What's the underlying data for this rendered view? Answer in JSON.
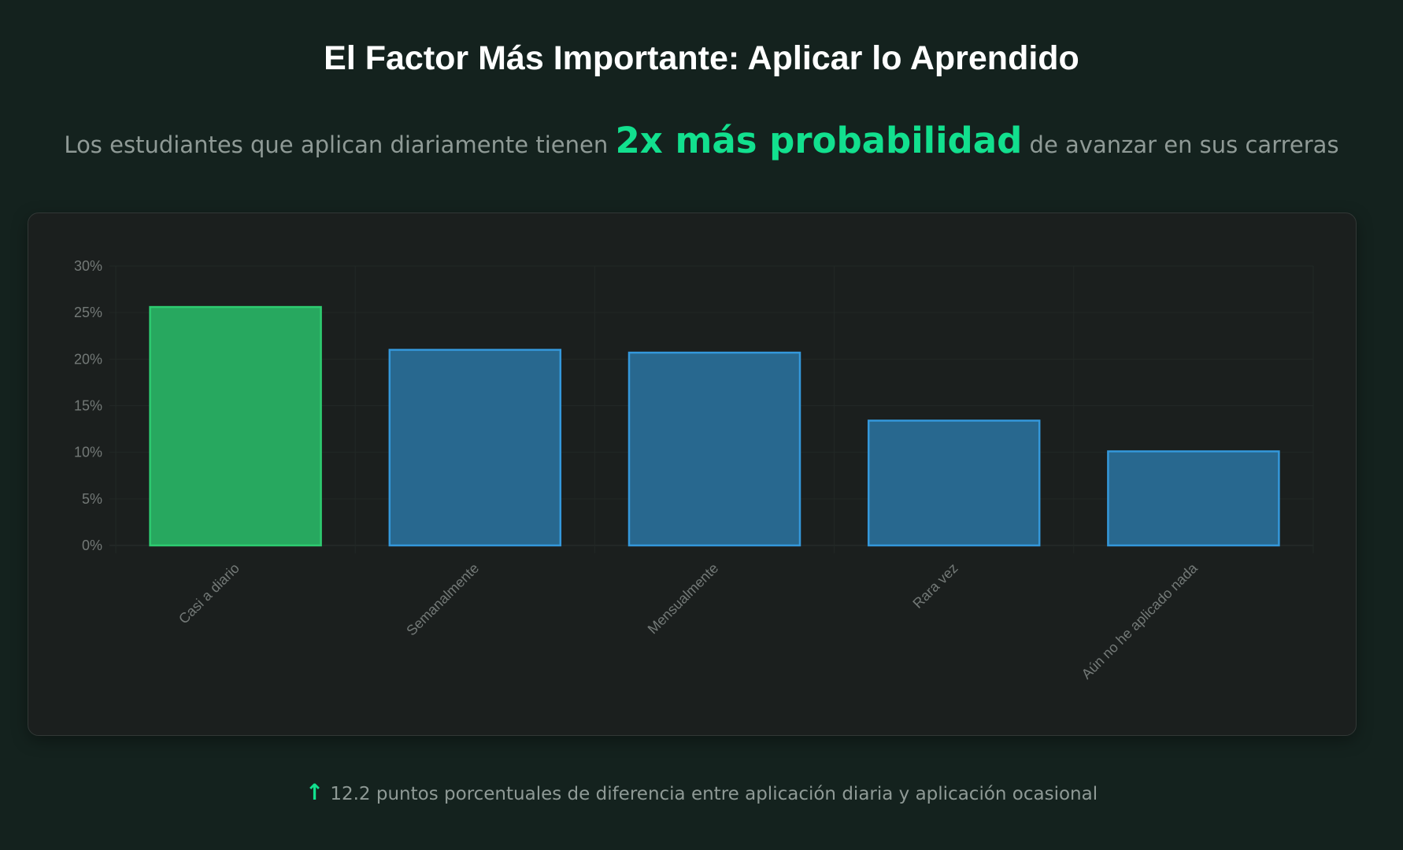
{
  "header": {
    "title": "El Factor Más Importante: Aplicar lo Aprendido",
    "subtitle_before": "Los estudiantes que aplican diariamente tienen",
    "subtitle_highlight": "2x más probabilidad",
    "subtitle_after": "de avanzar en sus carreras"
  },
  "footer": {
    "icon": "arrow-up-icon",
    "text": "12.2 puntos porcentuales de diferencia entre aplicación diaria y aplicación ocasional"
  },
  "colors": {
    "accent": "#12e08e",
    "highlight_bar_fill": "#27a85f",
    "highlight_bar_border": "#2ecc71",
    "bar_fill": "#28688f",
    "bar_border": "#3498db"
  },
  "chart_data": {
    "type": "bar",
    "categories": [
      "Casi a diario",
      "Semanalmente",
      "Mensualmente",
      "Rara vez",
      "Aún no he aplicado nada"
    ],
    "values": [
      25.6,
      21.0,
      20.7,
      13.4,
      10.1
    ],
    "highlighted_index": 0,
    "ylim": [
      0,
      30
    ],
    "yticks": [
      0,
      5,
      10,
      15,
      20,
      25,
      30
    ],
    "ytick_labels": [
      "0%",
      "5%",
      "10%",
      "15%",
      "20%",
      "25%",
      "30%"
    ],
    "grid": true,
    "legend": "none"
  }
}
